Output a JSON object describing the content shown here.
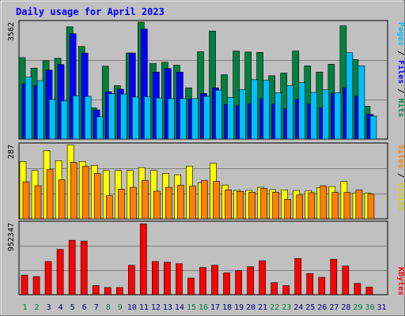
{
  "title": "Daily usage for April 2023",
  "colors": {
    "hits": "#008040",
    "files": "#0000ff",
    "pages": "#00c0ff",
    "visits": "#ffff00",
    "sites": "#ff8000",
    "kbytes": "#ff0000",
    "background": "#c0c0c0",
    "weekend_label": "#008040",
    "weekday_label": "#000080"
  },
  "chart_data": [
    {
      "type": "bar",
      "name": "hits-files-pages",
      "max_label": "3562",
      "ylim": [
        0,
        3562
      ],
      "legend": [
        "Hits",
        "Files",
        "Pages"
      ],
      "legend_separators": [
        "/",
        "/"
      ],
      "categories": [
        "1",
        "2",
        "3",
        "4",
        "5",
        "6",
        "7",
        "8",
        "9",
        "10",
        "11",
        "12",
        "13",
        "14",
        "15",
        "16",
        "17",
        "18",
        "19",
        "20",
        "21",
        "22",
        "23",
        "24",
        "25",
        "26",
        "27",
        "28",
        "29",
        "30",
        "31"
      ],
      "series": [
        {
          "name": "Hits",
          "values": [
            2480,
            2160,
            2390,
            2460,
            3420,
            2820,
            950,
            2220,
            1630,
            2620,
            3560,
            2300,
            2340,
            2250,
            1560,
            2660,
            3290,
            1960,
            2680,
            2650,
            2640,
            1930,
            2010,
            2680,
            2230,
            2040,
            2280,
            3450,
            2420,
            1000,
            0
          ]
        },
        {
          "name": "Files",
          "values": [
            1680,
            1630,
            2100,
            2270,
            3210,
            2620,
            890,
            1440,
            1520,
            2620,
            3350,
            2040,
            2150,
            2040,
            1220,
            1390,
            1560,
            1060,
            1020,
            1080,
            1230,
            1070,
            920,
            1210,
            1070,
            960,
            1400,
            1560,
            1310,
            750,
            0
          ]
        },
        {
          "name": "Pages",
          "values": [
            1890,
            1780,
            1210,
            1160,
            1320,
            1300,
            680,
            1380,
            1370,
            1280,
            1290,
            1250,
            1230,
            1230,
            1230,
            1300,
            1490,
            1270,
            1510,
            1810,
            1790,
            1410,
            1630,
            1720,
            1420,
            1500,
            1410,
            2630,
            2230,
            700,
            0
          ]
        }
      ]
    },
    {
      "type": "bar",
      "name": "visits-sites",
      "max_label": "287",
      "ylim": [
        0,
        287
      ],
      "legend": [
        "Sites",
        "Visits"
      ],
      "legend_separators": [
        "/"
      ],
      "categories": [
        "1",
        "2",
        "3",
        "4",
        "5",
        "6",
        "7",
        "8",
        "9",
        "10",
        "11",
        "12",
        "13",
        "14",
        "15",
        "16",
        "17",
        "18",
        "19",
        "20",
        "21",
        "22",
        "23",
        "24",
        "25",
        "26",
        "27",
        "28",
        "29",
        "30",
        "31"
      ],
      "series": [
        {
          "name": "Visits",
          "values": [
            222,
            187,
            264,
            225,
            286,
            222,
            207,
            187,
            187,
            187,
            198,
            187,
            176,
            170,
            204,
            140,
            215,
            131,
            110,
            110,
            122,
            113,
            112,
            110,
            109,
            121,
            125,
            145,
            100,
            100,
            0
          ]
        },
        {
          "name": "Sites",
          "values": [
            143,
            128,
            190,
            151,
            218,
            203,
            175,
            90,
            115,
            122,
            148,
            107,
            122,
            130,
            126,
            148,
            145,
            112,
            106,
            103,
            118,
            103,
            75,
            92,
            101,
            128,
            102,
            102,
            112,
            96,
            0
          ]
        }
      ]
    },
    {
      "type": "bar",
      "name": "kbytes",
      "max_label": "952347",
      "ylim": [
        0,
        952347
      ],
      "legend": [
        "KBytes"
      ],
      "categories": [
        "1",
        "2",
        "3",
        "4",
        "5",
        "6",
        "7",
        "8",
        "9",
        "10",
        "11",
        "12",
        "13",
        "14",
        "15",
        "16",
        "17",
        "18",
        "19",
        "20",
        "21",
        "22",
        "23",
        "24",
        "25",
        "26",
        "27",
        "28",
        "29",
        "30",
        "31"
      ],
      "series": [
        {
          "name": "KBytes",
          "values": [
            260000,
            240000,
            440000,
            600000,
            720000,
            710000,
            120000,
            95000,
            95000,
            390000,
            938000,
            440000,
            430000,
            410000,
            220000,
            360000,
            390000,
            290000,
            320000,
            370000,
            450000,
            160000,
            120000,
            480000,
            280000,
            230000,
            470000,
            380000,
            150000,
            100000,
            0
          ]
        }
      ]
    }
  ],
  "x_labels": [
    "1",
    "2",
    "3",
    "4",
    "5",
    "6",
    "7",
    "8",
    "9",
    "10",
    "11",
    "12",
    "13",
    "14",
    "15",
    "16",
    "17",
    "18",
    "19",
    "20",
    "21",
    "22",
    "23",
    "24",
    "25",
    "26",
    "27",
    "28",
    "29",
    "30",
    "31"
  ],
  "weekend_days": [
    "1",
    "2",
    "8",
    "9",
    "15",
    "16",
    "22",
    "23",
    "29",
    "30"
  ]
}
